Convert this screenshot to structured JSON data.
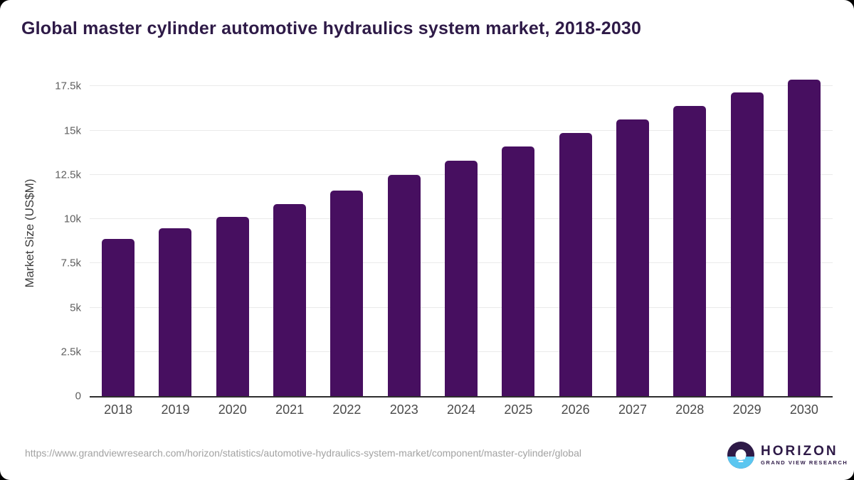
{
  "title": "Global master cylinder automotive hydraulics system market, 2018-2030",
  "chart_data": {
    "type": "bar",
    "title": "Global master cylinder automotive hydraulics system market, 2018-2030",
    "categories": [
      "2018",
      "2019",
      "2020",
      "2021",
      "2022",
      "2023",
      "2024",
      "2025",
      "2026",
      "2027",
      "2028",
      "2029",
      "2030"
    ],
    "values": [
      8880,
      9480,
      10140,
      10830,
      11610,
      12500,
      13310,
      14110,
      14860,
      15640,
      16390,
      17170,
      17890
    ],
    "xlabel": "",
    "ylabel": "Market Size (US$M)",
    "ylim": [
      0,
      18360
    ],
    "yticks": [
      0,
      2500,
      5000,
      7500,
      10000,
      12500,
      15000,
      17500
    ],
    "ytick_labels": [
      "0",
      "2.5k",
      "5k",
      "7.5k",
      "10k",
      "12.5k",
      "15k",
      "17.5k"
    ],
    "grid": true,
    "legend": "none",
    "bar_color": "#470f60"
  },
  "colors": {
    "bar": "#470f60",
    "title_text": "#2e1a47",
    "gridline": "#eaeaea",
    "axis_line": "#2e2e2e",
    "tick_text": "#5f5f5f",
    "url_text": "#a2a2a2",
    "logo_purple": "#2e1a47",
    "logo_blue": "#5bc6f0"
  },
  "footer": {
    "source_url": "https://www.grandviewresearch.com/horizon/statistics/automotive-hydraulics-system-market/component/master-cylinder/global",
    "logo": {
      "name": "HORIZON",
      "subtext": "GRAND VIEW RESEARCH"
    }
  }
}
